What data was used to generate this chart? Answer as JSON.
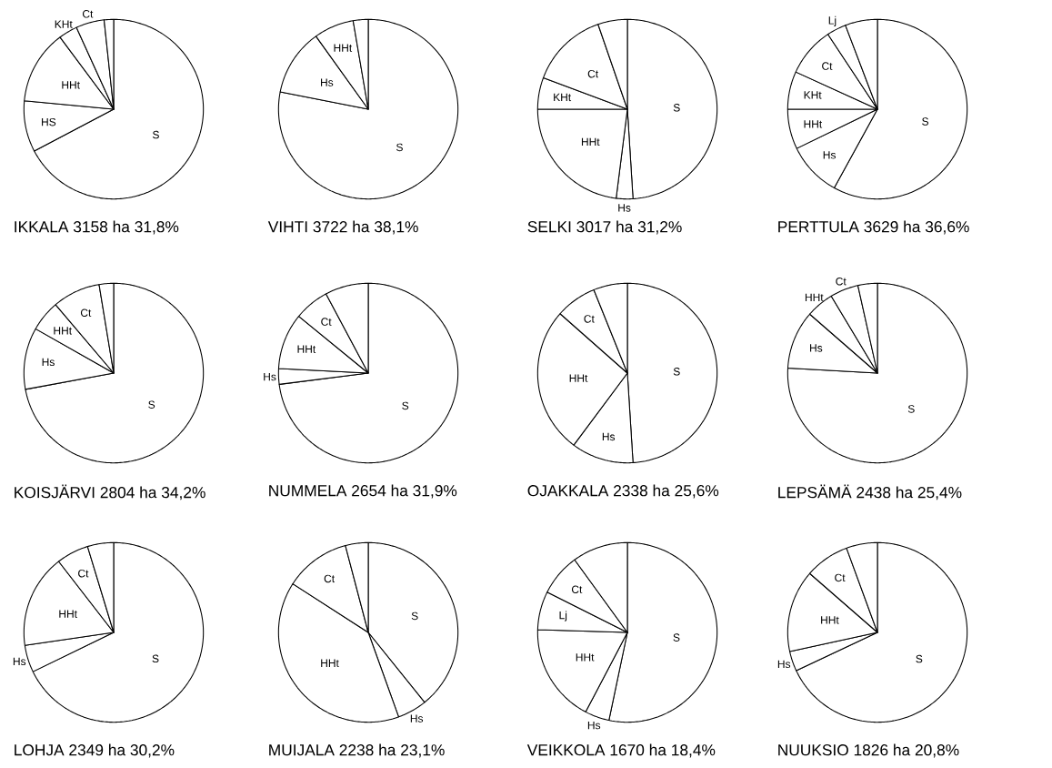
{
  "chart_data": [
    {
      "type": "pie",
      "title": "IKKALA 3158 ha 31,8%",
      "categories": [
        "S",
        "HS",
        "HHt",
        "KHt",
        "Ct",
        null
      ],
      "values": [
        67.3,
        9.2,
        13.3,
        3.4,
        5.1,
        1.7
      ],
      "colors": [
        "#ffffff",
        "#ffffff",
        "#ffffff",
        "#ffffff",
        "#ffffff",
        "#ffffff"
      ]
    },
    {
      "type": "pie",
      "title": "VIHTI 3722 ha 38,1%",
      "categories": [
        "S",
        "Hs",
        "HHt",
        null
      ],
      "values": [
        78.1,
        12.0,
        7.2,
        2.7
      ],
      "colors": [
        "#ffffff",
        "#ffffff",
        "#ffffff",
        "#ffffff"
      ]
    },
    {
      "type": "pie",
      "title": "SELKI 3017 ha 31,2%",
      "categories": [
        "S",
        "Hs",
        "HHt",
        "KHt",
        "Ct",
        null
      ],
      "values": [
        49.0,
        3.0,
        23.0,
        5.7,
        14.0,
        5.3
      ],
      "colors": [
        "#ffffff",
        "#ffffff",
        "#ffffff",
        "#ffffff",
        "#ffffff",
        "#ffffff"
      ]
    },
    {
      "type": "pie",
      "title": "PERTTULA 3629 ha 36,6%",
      "categories": [
        "S",
        "Hs",
        "HHt",
        "KHt",
        "Ct",
        "Lj",
        null
      ],
      "values": [
        58.0,
        9.8,
        7.2,
        6.8,
        8.9,
        3.5,
        5.8
      ],
      "colors": [
        "#ffffff",
        "#ffffff",
        "#ffffff",
        "#ffffff",
        "#ffffff",
        "#ffffff",
        "#ffffff"
      ]
    },
    {
      "type": "pie",
      "title": "KOISJÄRVI 2804 ha 34,2%",
      "categories": [
        "S",
        "Hs",
        "HHt",
        "Ct",
        null
      ],
      "values": [
        72.1,
        11.1,
        5.6,
        8.6,
        2.6
      ],
      "colors": [
        "#ffffff",
        "#ffffff",
        "#ffffff",
        "#ffffff",
        "#ffffff"
      ]
    },
    {
      "type": "pie",
      "title": "NUMMELA 2654 ha 31,9%",
      "categories": [
        "S",
        "Hs",
        "HHt",
        "Ct",
        null
      ],
      "values": [
        73.0,
        2.8,
        10.1,
        6.3,
        7.8
      ],
      "colors": [
        "#ffffff",
        "#ffffff",
        "#ffffff",
        "#ffffff",
        "#ffffff"
      ]
    },
    {
      "type": "pie",
      "title": "OJAKKALA 2338 ha 25,6%",
      "categories": [
        "S",
        "Hs",
        "HHt",
        "Ct",
        null
      ],
      "values": [
        49.0,
        11.2,
        26.3,
        7.4,
        6.1
      ],
      "colors": [
        "#ffffff",
        "#ffffff",
        "#ffffff",
        "#ffffff",
        "#ffffff"
      ]
    },
    {
      "type": "pie",
      "title": "LEPSÄMÄ 2438 ha 25,4%",
      "categories": [
        "S",
        "Hs",
        "HHt",
        "Ct",
        null
      ],
      "values": [
        75.9,
        10.5,
        5.0,
        5.1,
        3.5
      ],
      "colors": [
        "#ffffff",
        "#ffffff",
        "#ffffff",
        "#ffffff",
        "#ffffff"
      ]
    },
    {
      "type": "pie",
      "title": "LOHJA 2349 ha 30,2%",
      "categories": [
        "S",
        "Hs",
        "HHt",
        "Ct",
        null
      ],
      "values": [
        67.8,
        4.9,
        16.8,
        5.8,
        4.7
      ],
      "colors": [
        "#ffffff",
        "#ffffff",
        "#ffffff",
        "#ffffff",
        "#ffffff"
      ]
    },
    {
      "type": "pie",
      "title": "MUIJALA 2238 ha 23,1%",
      "categories": [
        "S",
        "Hs",
        "HHt",
        "Ct",
        null
      ],
      "values": [
        39.2,
        5.3,
        39.6,
        11.8,
        4.1
      ],
      "colors": [
        "#ffffff",
        "#ffffff",
        "#ffffff",
        "#ffffff",
        "#ffffff"
      ]
    },
    {
      "type": "pie",
      "title": "VEIKKOLA 1670 ha 18,4%",
      "categories": [
        "S",
        "Hs",
        "HHt",
        "Lj",
        "Ct",
        null
      ],
      "values": [
        53.3,
        4.4,
        17.8,
        6.9,
        7.6,
        10.0
      ],
      "colors": [
        "#ffffff",
        "#ffffff",
        "#ffffff",
        "#ffffff",
        "#ffffff",
        "#ffffff"
      ]
    },
    {
      "type": "pie",
      "title": "NUUKSIO 1826 ha 20,8%",
      "categories": [
        "S",
        "Hs",
        "HHt",
        "Ct",
        null
      ],
      "values": [
        68.0,
        3.6,
        14.8,
        8.0,
        5.6
      ],
      "colors": [
        "#ffffff",
        "#ffffff",
        "#ffffff",
        "#ffffff",
        "#ffffff"
      ]
    }
  ]
}
